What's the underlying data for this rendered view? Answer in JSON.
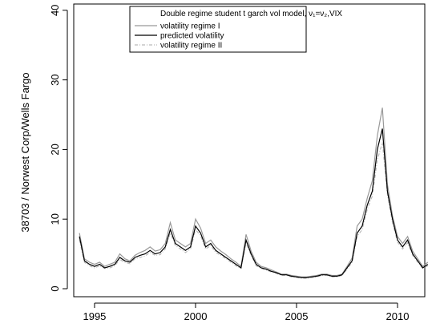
{
  "chart_data": {
    "type": "line",
    "y_label": "38703 / Norwest Corp/Wells Fargo",
    "legend_title": "Double regime student t garch vol model, ν₁=ν₂,VIX",
    "x": [
      1994.25,
      1994.5,
      1994.75,
      1995,
      1995.25,
      1995.5,
      1995.75,
      1996,
      1996.25,
      1996.5,
      1996.75,
      1997,
      1997.25,
      1997.5,
      1997.75,
      1998,
      1998.25,
      1998.5,
      1998.75,
      1999,
      1999.25,
      1999.5,
      1999.75,
      2000,
      2000.25,
      2000.5,
      2000.75,
      2001,
      2001.25,
      2001.5,
      2001.75,
      2002,
      2002.25,
      2002.5,
      2002.75,
      2003,
      2003.25,
      2003.5,
      2003.75,
      2004,
      2004.25,
      2004.5,
      2004.75,
      2005,
      2005.25,
      2005.5,
      2005.75,
      2006,
      2006.25,
      2006.5,
      2006.75,
      2007,
      2007.25,
      2007.5,
      2007.75,
      2008,
      2008.25,
      2008.5,
      2008.75,
      2009,
      2009.25,
      2009.5,
      2009.75,
      2010,
      2010.25,
      2010.5,
      2010.75,
      2011,
      2011.25,
      2011.5
    ],
    "series": [
      {
        "name": "volatility regime I",
        "color": "#999999",
        "dash": "none",
        "values": [
          8,
          4.3,
          3.8,
          3.5,
          3.8,
          3.2,
          3.5,
          3.8,
          5,
          4.3,
          4,
          4.8,
          5.2,
          5.5,
          6,
          5.4,
          5.6,
          6.5,
          9.5,
          7,
          6.5,
          6,
          6.5,
          10,
          8.7,
          6.5,
          7,
          6,
          5.4,
          4.9,
          4.3,
          3.8,
          3.2,
          7.8,
          5.4,
          3.8,
          3.2,
          3,
          2.7,
          2.4,
          2.1,
          2.1,
          1.9,
          1.8,
          1.7,
          1.7,
          1.8,
          1.9,
          2.1,
          2.1,
          1.9,
          1.9,
          2.1,
          3.2,
          4.4,
          9,
          10,
          13,
          15.5,
          22,
          26,
          15,
          10.5,
          7.5,
          6.5,
          7.5,
          5.4,
          4.3,
          3.2,
          3.8
        ]
      },
      {
        "name": "predicted volatility",
        "color": "#000000",
        "dash": "none",
        "values": [
          7.5,
          4,
          3.5,
          3.2,
          3.5,
          3,
          3.2,
          3.5,
          4.5,
          4,
          3.8,
          4.5,
          4.8,
          5,
          5.5,
          5,
          5.2,
          6,
          8.5,
          6.5,
          6,
          5.5,
          6,
          9,
          8,
          6,
          6.5,
          5.5,
          5,
          4.5,
          4,
          3.5,
          3,
          7,
          5,
          3.5,
          3,
          2.8,
          2.5,
          2.3,
          2,
          2,
          1.8,
          1.7,
          1.6,
          1.6,
          1.7,
          1.8,
          2,
          2,
          1.8,
          1.8,
          2,
          3,
          4,
          8,
          9,
          12,
          14,
          20,
          23,
          14,
          10,
          7,
          6,
          7,
          5,
          4,
          3,
          3.5
        ]
      },
      {
        "name": "volatility regime II",
        "color": "#bbbbbb",
        "dash": "4 2 1 2",
        "values": [
          7,
          3.8,
          3.3,
          3,
          3.3,
          2.9,
          3,
          3.3,
          4.2,
          3.8,
          3.6,
          4.3,
          4.5,
          4.7,
          5.2,
          4.8,
          4.9,
          5.7,
          8,
          6.2,
          5.7,
          5.2,
          5.7,
          8.5,
          7.6,
          5.7,
          6.2,
          5.2,
          4.8,
          4.3,
          3.8,
          3.3,
          2.9,
          6.6,
          4.8,
          3.3,
          2.9,
          2.7,
          2.4,
          2.2,
          1.9,
          1.9,
          1.7,
          1.6,
          1.5,
          1.5,
          1.6,
          1.7,
          1.9,
          1.9,
          1.7,
          1.7,
          1.9,
          2.8,
          3.8,
          7.5,
          8.5,
          11.4,
          13.3,
          18.5,
          21,
          13.5,
          9.5,
          6.7,
          5.7,
          6.6,
          4.8,
          3.8,
          2.9,
          3.3
        ]
      }
    ],
    "xlim": [
      1993.97,
      2011.35
    ],
    "ylim": [
      -1.15,
      40.9
    ],
    "xticks": [
      1995,
      2000,
      2005,
      2010
    ],
    "yticks": [
      0,
      10,
      20,
      30,
      40
    ]
  }
}
